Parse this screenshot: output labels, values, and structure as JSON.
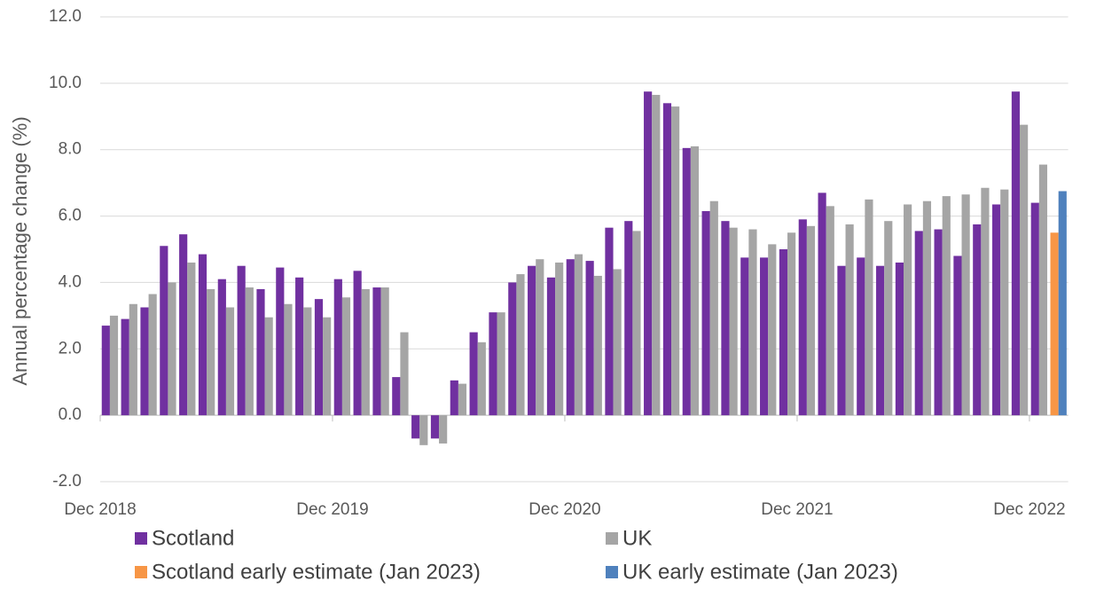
{
  "chart_data": {
    "type": "bar",
    "y_label": "Annual percentage change (%)",
    "categories": [
      "Dec 2018",
      null,
      null,
      null,
      null,
      null,
      null,
      null,
      null,
      null,
      null,
      null,
      "Dec 2019",
      null,
      null,
      null,
      null,
      null,
      null,
      null,
      null,
      null,
      null,
      null,
      "Dec 2020",
      null,
      null,
      null,
      null,
      null,
      null,
      null,
      null,
      null,
      null,
      null,
      "Dec 2021",
      null,
      null,
      null,
      null,
      null,
      null,
      null,
      null,
      null,
      null,
      null,
      "Dec 2022",
      null
    ],
    "series": [
      {
        "name": "Scotland",
        "color": "#7030a0",
        "values": [
          2.7,
          2.9,
          3.25,
          5.1,
          5.45,
          4.85,
          4.1,
          4.5,
          3.8,
          4.45,
          4.15,
          3.5,
          4.1,
          4.35,
          3.85,
          1.15,
          -0.7,
          -0.7,
          1.05,
          2.5,
          3.1,
          4.0,
          4.5,
          4.15,
          4.7,
          4.65,
          5.65,
          5.85,
          9.75,
          9.4,
          8.05,
          6.15,
          5.85,
          4.75,
          4.75,
          5.0,
          5.9,
          6.7,
          4.5,
          4.75,
          4.5,
          4.6,
          5.55,
          5.6,
          4.8,
          5.75,
          6.35,
          9.75,
          6.4,
          null
        ]
      },
      {
        "name": "UK",
        "color": "#a5a5a5",
        "values": [
          3.0,
          3.35,
          3.65,
          4.0,
          4.6,
          3.8,
          3.25,
          3.85,
          2.95,
          3.35,
          3.25,
          2.95,
          3.55,
          3.8,
          3.85,
          2.5,
          -0.9,
          -0.85,
          0.95,
          2.2,
          3.1,
          4.25,
          4.7,
          4.6,
          4.85,
          4.2,
          4.4,
          5.55,
          9.65,
          9.3,
          8.1,
          6.45,
          5.65,
          5.6,
          5.15,
          5.5,
          5.7,
          6.3,
          5.75,
          6.5,
          5.85,
          6.35,
          6.45,
          6.6,
          6.65,
          6.85,
          6.8,
          8.75,
          7.55,
          null
        ]
      },
      {
        "name": "Scotland early estimate (Jan 2023)",
        "color": "#f79646",
        "values": [
          null,
          null,
          null,
          null,
          null,
          null,
          null,
          null,
          null,
          null,
          null,
          null,
          null,
          null,
          null,
          null,
          null,
          null,
          null,
          null,
          null,
          null,
          null,
          null,
          null,
          null,
          null,
          null,
          null,
          null,
          null,
          null,
          null,
          null,
          null,
          null,
          null,
          null,
          null,
          null,
          null,
          null,
          null,
          null,
          null,
          null,
          null,
          null,
          null,
          5.5
        ]
      },
      {
        "name": "UK early estimate (Jan 2023)",
        "color": "#4f81bd",
        "values": [
          null,
          null,
          null,
          null,
          null,
          null,
          null,
          null,
          null,
          null,
          null,
          null,
          null,
          null,
          null,
          null,
          null,
          null,
          null,
          null,
          null,
          null,
          null,
          null,
          null,
          null,
          null,
          null,
          null,
          null,
          null,
          null,
          null,
          null,
          null,
          null,
          null,
          null,
          null,
          null,
          null,
          null,
          null,
          null,
          null,
          null,
          null,
          null,
          null,
          6.75
        ]
      }
    ],
    "ylim": [
      -2,
      12
    ],
    "yticks": [
      {
        "value": -2,
        "label": "-2.0"
      },
      {
        "value": 0,
        "label": "0.0"
      },
      {
        "value": 2,
        "label": "2.0"
      },
      {
        "value": 4,
        "label": "4.0"
      },
      {
        "value": 6,
        "label": "6.0"
      },
      {
        "value": 8,
        "label": "8.0"
      },
      {
        "value": 10,
        "label": "10.0"
      },
      {
        "value": 12,
        "label": "12.0"
      }
    ],
    "grid": true
  }
}
